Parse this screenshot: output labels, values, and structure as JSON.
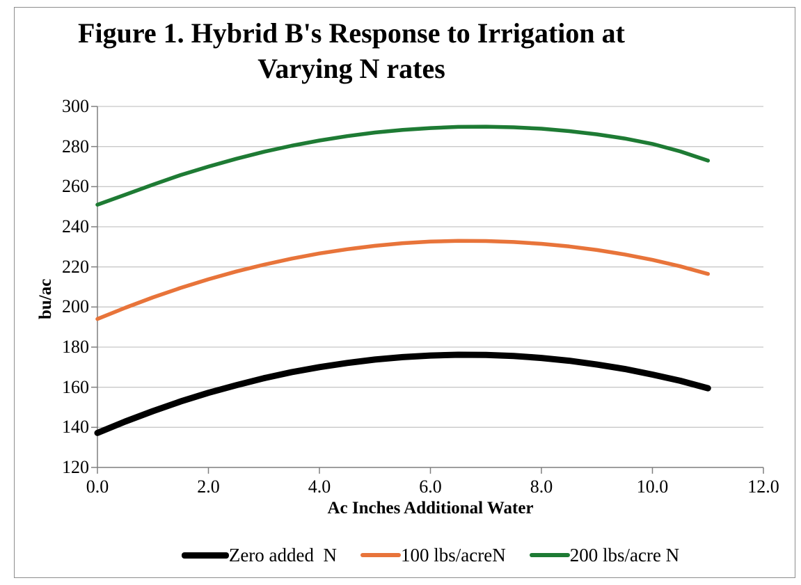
{
  "chart_data": {
    "type": "line",
    "title": "Figure 1. Hybrid B's Response to Irrigation at Varying N rates",
    "title_lines": [
      "Figure 1. Hybrid B's Response to Irrigation at",
      "Varying N rates"
    ],
    "xlabel": "Ac Inches Additional Water",
    "ylabel": "bu/ac",
    "xlim": [
      0,
      12
    ],
    "ylim": [
      120,
      300
    ],
    "x_ticks": [
      {
        "value": 0,
        "label": "0.0"
      },
      {
        "value": 2,
        "label": "2.0"
      },
      {
        "value": 4,
        "label": "4.0"
      },
      {
        "value": 6,
        "label": "6.0"
      },
      {
        "value": 8,
        "label": "8.0"
      },
      {
        "value": 10,
        "label": "10.0"
      },
      {
        "value": 12,
        "label": "12.0"
      }
    ],
    "y_ticks": [
      {
        "value": 120,
        "label": "120"
      },
      {
        "value": 140,
        "label": "140"
      },
      {
        "value": 160,
        "label": "160"
      },
      {
        "value": 180,
        "label": "180"
      },
      {
        "value": 200,
        "label": "200"
      },
      {
        "value": 220,
        "label": "220"
      },
      {
        "value": 240,
        "label": "240"
      },
      {
        "value": 260,
        "label": "260"
      },
      {
        "value": 280,
        "label": "280"
      },
      {
        "value": 300,
        "label": "300"
      }
    ],
    "grid": "horizontal",
    "grid_color": "#c8c8c8",
    "axis_color": "#7f7f7f",
    "legend_position": "bottom",
    "series": [
      {
        "name": "Zero added  N",
        "color": "#000000",
        "width": 9,
        "points": [
          [
            0,
            137.2
          ],
          [
            0.5,
            142.9
          ],
          [
            1,
            148.1
          ],
          [
            1.5,
            152.9
          ],
          [
            2,
            157.2
          ],
          [
            2.5,
            161.0
          ],
          [
            3,
            164.5
          ],
          [
            3.5,
            167.5
          ],
          [
            4,
            170.0
          ],
          [
            4.5,
            172.1
          ],
          [
            5,
            173.8
          ],
          [
            5.5,
            175.0
          ],
          [
            6,
            175.8
          ],
          [
            6.5,
            176.2
          ],
          [
            7,
            176.1
          ],
          [
            7.5,
            175.6
          ],
          [
            8,
            174.6
          ],
          [
            8.5,
            173.2
          ],
          [
            9,
            171.3
          ],
          [
            9.5,
            169.1
          ],
          [
            10,
            166.3
          ],
          [
            10.5,
            163.2
          ],
          [
            11,
            159.5
          ]
        ]
      },
      {
        "name": "100 lbs/acreN",
        "color": "#e8743a",
        "width": 5.5,
        "points": [
          [
            0,
            194.0
          ],
          [
            0.5,
            199.6
          ],
          [
            1,
            204.8
          ],
          [
            1.5,
            209.5
          ],
          [
            2,
            213.8
          ],
          [
            2.5,
            217.7
          ],
          [
            3,
            221.1
          ],
          [
            3.5,
            224.1
          ],
          [
            4,
            226.7
          ],
          [
            4.5,
            228.8
          ],
          [
            5,
            230.5
          ],
          [
            5.5,
            231.8
          ],
          [
            6,
            232.6
          ],
          [
            6.5,
            233.0
          ],
          [
            7,
            232.9
          ],
          [
            7.5,
            232.4
          ],
          [
            8,
            231.5
          ],
          [
            8.5,
            230.2
          ],
          [
            9,
            228.4
          ],
          [
            9.5,
            226.2
          ],
          [
            10,
            223.5
          ],
          [
            10.5,
            220.3
          ],
          [
            11,
            216.5
          ]
        ]
      },
      {
        "name": "200 lbs/acre N",
        "color": "#1e7b34",
        "width": 5.5,
        "points": [
          [
            0,
            251.0
          ],
          [
            0.5,
            256.0
          ],
          [
            1,
            261.0
          ],
          [
            1.5,
            265.8
          ],
          [
            2,
            270.0
          ],
          [
            2.5,
            273.9
          ],
          [
            3,
            277.4
          ],
          [
            3.5,
            280.4
          ],
          [
            4,
            283.0
          ],
          [
            4.5,
            285.2
          ],
          [
            5,
            287.0
          ],
          [
            5.5,
            288.3
          ],
          [
            6,
            289.2
          ],
          [
            6.5,
            289.8
          ],
          [
            7,
            289.9
          ],
          [
            7.5,
            289.6
          ],
          [
            8,
            288.9
          ],
          [
            8.5,
            287.7
          ],
          [
            9,
            286.1
          ],
          [
            9.5,
            284.0
          ],
          [
            10,
            281.3
          ],
          [
            10.5,
            277.6
          ],
          [
            11,
            273.0
          ]
        ]
      }
    ]
  }
}
